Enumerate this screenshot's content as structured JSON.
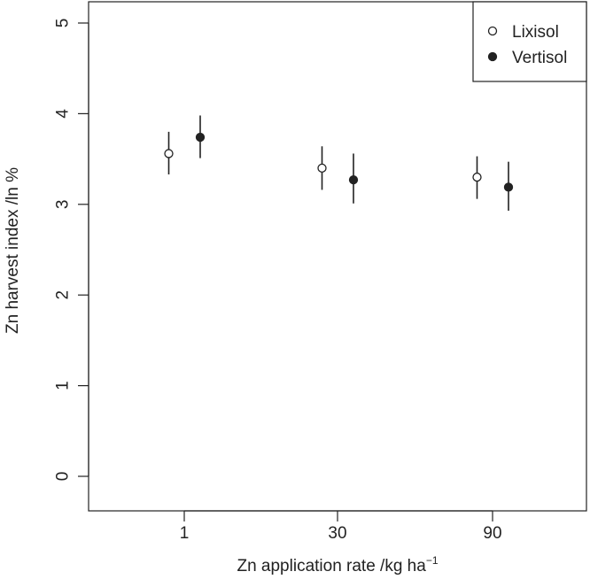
{
  "chart_data": {
    "type": "scatter",
    "xlabel": "Zn application rate /kg ha",
    "xlabel_sup": "−1",
    "ylabel": "Zn harvest index /ln %",
    "categories": [
      "1",
      "30",
      "90"
    ],
    "ylim": [
      0,
      5
    ],
    "yticks": [
      "0",
      "1",
      "2",
      "3",
      "4",
      "5"
    ],
    "grid": false,
    "legend_position": "top-right",
    "series": [
      {
        "name": "Lixisol",
        "marker": "open-circle",
        "values": [
          3.56,
          3.4,
          3.3
        ],
        "lower": [
          3.33,
          3.16,
          3.06
        ],
        "upper": [
          3.8,
          3.64,
          3.53
        ]
      },
      {
        "name": "Vertisol",
        "marker": "filled-circle",
        "values": [
          3.74,
          3.27,
          3.19
        ],
        "lower": [
          3.51,
          3.01,
          2.93
        ],
        "upper": [
          3.98,
          3.56,
          3.47
        ]
      }
    ],
    "colors": {
      "line": "#222222",
      "background": "#ffffff"
    }
  }
}
